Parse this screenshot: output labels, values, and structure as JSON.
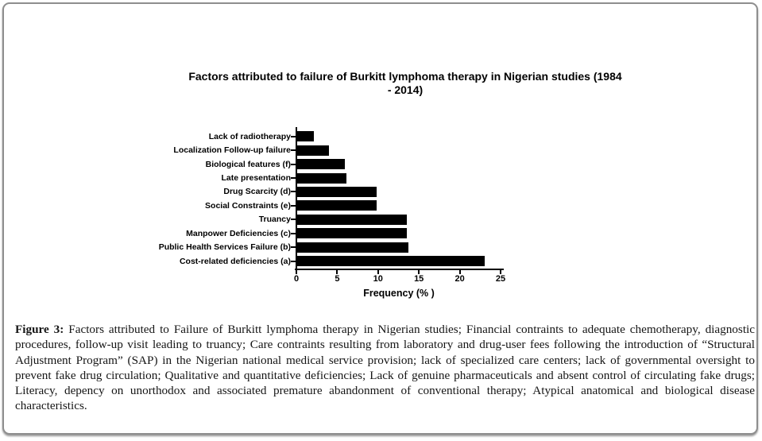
{
  "figure": {
    "chart": {
      "title_lines": [
        "Factors attributed to failure of Burkitt lymphoma therapy in Nigerian studies (1984",
        "- 2014)"
      ]
    },
    "caption": {
      "label": "Figure 3:",
      "text": "Factors attributed to Failure of Burkitt lymphoma therapy in Nigerian studies; Financial contraints to adequate chemotherapy, diagnostic procedures, follow-up visit leading to truancy; Care contraints resulting from laboratory and drug-user fees following the introduction of “Structural Adjustment Program” (SAP) in the Nigerian national medical service provision; lack of specialized care centers; lack of governmental oversight to prevent fake drug circulation; Qualitative and quantitative deficiencies; Lack of genuine pharmaceuticals and absent control of circulating fake drugs; Literacy, depency on unorthodox and associated premature abandonment of conventional therapy; Atypical anatomical and biological disease characteristics."
    }
  },
  "chart_data": {
    "type": "bar",
    "orientation": "horizontal",
    "title": "Factors attributed to failure of Burkitt lymphoma therapy in Nigerian studies (1984 - 2014)",
    "xlabel": "Frequency (% )",
    "ylabel": "",
    "categories": [
      "Lack of radiotherapy",
      "Localization Follow-up failure",
      "Biological features (f)",
      "Late presentation",
      "Drug Scarcity (d)",
      "Social Constraints (e)",
      "Truancy",
      "Manpower Deficiencies (c)",
      "Public Health Services Failure (b)",
      "Cost-related deficiencies (a)"
    ],
    "values": [
      2.0,
      3.9,
      5.8,
      6.0,
      9.7,
      9.7,
      13.4,
      13.4,
      13.6,
      23.0
    ],
    "xlim": [
      0,
      25
    ],
    "x_ticks": [
      0,
      5,
      10,
      15,
      20,
      25
    ],
    "bar_color": "#000000",
    "grid": false,
    "legend": false
  }
}
